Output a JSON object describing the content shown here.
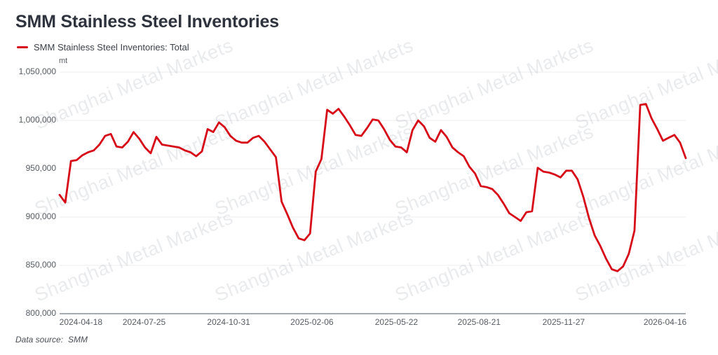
{
  "title": "SMM Stainless Steel Inventories",
  "legend": {
    "label": "SMM Stainless Steel Inventories: Total"
  },
  "footer": {
    "label": "Data source:",
    "value": "SMM"
  },
  "watermark": {
    "text": "Shanghai Metal Markets"
  },
  "chart_data": {
    "type": "line",
    "title": "SMM Stainless Steel Inventories",
    "unit": "mt",
    "grid": true,
    "legend_position": "top-left",
    "ylim": [
      800000,
      1050000
    ],
    "y_ticks": [
      {
        "label": "1,050,000",
        "value": 1050000
      },
      {
        "label": "1,000,000",
        "value": 1000000
      },
      {
        "label": "950,000",
        "value": 950000
      },
      {
        "label": "900,000",
        "value": 900000
      },
      {
        "label": "850,000",
        "value": 850000
      },
      {
        "label": "800,000",
        "value": 800000
      }
    ],
    "x_ticks": [
      {
        "label": "2024-04-18",
        "pos": 0.034
      },
      {
        "label": "2024-07-25",
        "pos": 0.135
      },
      {
        "label": "2024-10-31",
        "pos": 0.27
      },
      {
        "label": "2025-02-06",
        "pos": 0.403
      },
      {
        "label": "2025-05-22",
        "pos": 0.538
      },
      {
        "label": "2025-08-21",
        "pos": 0.67
      },
      {
        "label": "2025-11-27",
        "pos": 0.805
      },
      {
        "label": "2026-04-16",
        "pos": 0.967
      }
    ],
    "series": [
      {
        "name": "SMM Stainless Steel Inventories: Total",
        "color": "#d60b17",
        "values": [
          923000,
          915000,
          958000,
          959000,
          964000,
          967000,
          969000,
          975000,
          984000,
          986000,
          973000,
          972000,
          978000,
          988000,
          981000,
          972000,
          966000,
          983000,
          975000,
          974000,
          973000,
          972000,
          969000,
          967000,
          963000,
          968000,
          991000,
          988000,
          998000,
          993000,
          984000,
          979000,
          977000,
          977000,
          982000,
          984000,
          978000,
          970000,
          962000,
          916000,
          903000,
          889000,
          878000,
          876000,
          883000,
          947000,
          960000,
          1011000,
          1007000,
          1012000,
          1004000,
          995000,
          985000,
          984000,
          992000,
          1001000,
          1000000,
          991000,
          980000,
          973000,
          972000,
          967000,
          990000,
          1000000,
          994000,
          982000,
          978000,
          990000,
          983000,
          972000,
          967000,
          963000,
          952000,
          945000,
          932000,
          931000,
          929000,
          923000,
          914000,
          904000,
          900000,
          896000,
          905000,
          906000,
          951000,
          947000,
          946000,
          944000,
          941000,
          948000,
          948000,
          939000,
          921000,
          899000,
          881000,
          870000,
          857000,
          846000,
          844000,
          849000,
          862000,
          886000,
          1016000,
          1017000,
          1002000,
          991000,
          979000,
          982000,
          985000,
          977000,
          961000
        ]
      }
    ],
    "colors": {
      "line": "#d60b17",
      "gridline": "#ececef",
      "axis": "#a6aab2"
    }
  }
}
